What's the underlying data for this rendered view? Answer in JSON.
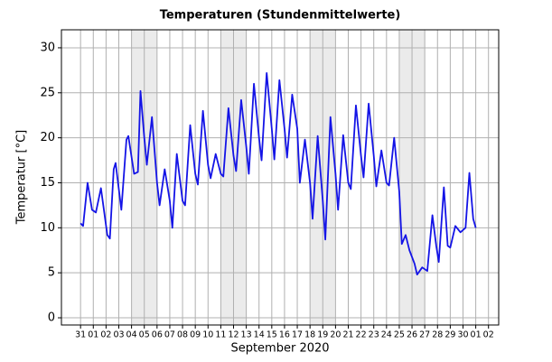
{
  "chart_data": {
    "type": "line",
    "title": "Temperaturen (Stundenmittelwerte)",
    "xlabel": "September 2020",
    "ylabel": "Temperatur [°C]",
    "x": [
      0.0,
      0.2,
      0.55,
      0.9,
      1.2,
      1.6,
      2.1,
      2.3,
      2.6,
      2.75,
      3.2,
      3.6,
      3.75,
      4.2,
      4.5,
      4.7,
      5.0,
      5.2,
      5.6,
      6.0,
      6.2,
      6.6,
      7.0,
      7.2,
      7.55,
      8.0,
      8.2,
      8.6,
      9.0,
      9.2,
      9.6,
      10.0,
      10.2,
      10.6,
      11.0,
      11.2,
      11.6,
      12.0,
      12.2,
      12.6,
      13.0,
      13.2,
      13.6,
      14.0,
      14.2,
      14.6,
      15.0,
      15.2,
      15.6,
      16.0,
      16.2,
      16.6,
      17.0,
      17.2,
      17.6,
      18.0,
      18.2,
      18.6,
      19.0,
      19.2,
      19.6,
      20.0,
      20.2,
      20.6,
      21.0,
      21.2,
      21.6,
      22.0,
      22.2,
      22.6,
      23.0,
      23.2,
      23.6,
      24.0,
      24.2,
      24.6,
      25.0,
      25.2,
      25.5,
      25.8,
      26.2,
      26.4,
      26.8,
      27.2,
      27.6,
      27.9,
      28.1,
      28.5,
      28.8,
      29.0,
      29.4,
      29.8,
      30.2,
      30.5,
      30.8,
      31.0
    ],
    "values": [
      10.5,
      10.2,
      15,
      12,
      11.7,
      14.4,
      9.2,
      8.8,
      16.5,
      17.2,
      12,
      19.8,
      20.2,
      16,
      16.2,
      25.2,
      20,
      17,
      22.3,
      15,
      12.5,
      16.5,
      13,
      10,
      18.2,
      13,
      12.5,
      21.4,
      16,
      14.8,
      23,
      17,
      15.5,
      18.2,
      16,
      15.7,
      23.3,
      18,
      16.3,
      24.2,
      19,
      16,
      26,
      20,
      17.5,
      27.2,
      21,
      17.6,
      26.4,
      21,
      17.8,
      24.8,
      21,
      15,
      19.8,
      15,
      11,
      20.2,
      13,
      8.7,
      22.3,
      16,
      12,
      20.3,
      15,
      14.3,
      23.6,
      18,
      15.6,
      23.8,
      18,
      14.6,
      18.6,
      15,
      14.7,
      20,
      14,
      8.2,
      9.2,
      7.5,
      6,
      4.8,
      5.6,
      5.2,
      11.4,
      8,
      6.2,
      14.5,
      8,
      7.8,
      10.2,
      9.5,
      10,
      16.1,
      11,
      10
    ],
    "color": "#1414e6",
    "shaded_ranges": [
      [
        4,
        6
      ],
      [
        11,
        13
      ],
      [
        18,
        20
      ],
      [
        25,
        27
      ]
    ],
    "xlim": [
      -1.5,
      32.8
    ],
    "ylim": [
      -0.8,
      32
    ],
    "yticks": [
      0,
      5,
      10,
      15,
      20,
      25,
      30
    ],
    "xticks": [
      {
        "value": 0,
        "label": "31"
      },
      {
        "value": 1,
        "label": "01"
      },
      {
        "value": 2,
        "label": "02"
      },
      {
        "value": 3,
        "label": "03"
      },
      {
        "value": 4,
        "label": "04"
      },
      {
        "value": 5,
        "label": "05"
      },
      {
        "value": 6,
        "label": "06"
      },
      {
        "value": 7,
        "label": "07"
      },
      {
        "value": 8,
        "label": "08"
      },
      {
        "value": 9,
        "label": "09"
      },
      {
        "value": 10,
        "label": "10"
      },
      {
        "value": 11,
        "label": "11"
      },
      {
        "value": 12,
        "label": "12"
      },
      {
        "value": 13,
        "label": "13"
      },
      {
        "value": 14,
        "label": "14"
      },
      {
        "value": 15,
        "label": "15"
      },
      {
        "value": 16,
        "label": "16"
      },
      {
        "value": 17,
        "label": "17"
      },
      {
        "value": 18,
        "label": "18"
      },
      {
        "value": 19,
        "label": "19"
      },
      {
        "value": 20,
        "label": "20"
      },
      {
        "value": 21,
        "label": "21"
      },
      {
        "value": 22,
        "label": "22"
      },
      {
        "value": 23,
        "label": "23"
      },
      {
        "value": 24,
        "label": "24"
      },
      {
        "value": 25,
        "label": "25"
      },
      {
        "value": 26,
        "label": "26"
      },
      {
        "value": 27,
        "label": "27"
      },
      {
        "value": 28,
        "label": "28"
      },
      {
        "value": 29,
        "label": "29"
      },
      {
        "value": 30,
        "label": "30"
      },
      {
        "value": 31,
        "label": "01"
      },
      {
        "value": 32,
        "label": "02"
      }
    ],
    "grid": true
  }
}
